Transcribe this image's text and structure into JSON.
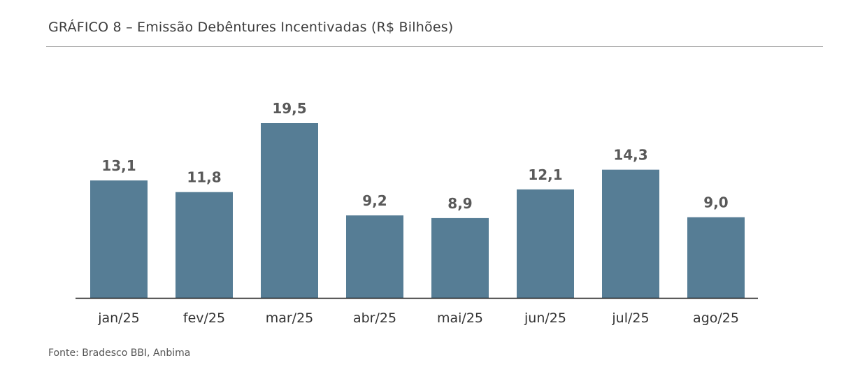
{
  "title": "GRÁFICO 8 – Emissão Debêntures Incentivadas (R$ Bilhões)",
  "source": "Fonte: Bradesco BBI, Anbima",
  "colors": {
    "bar": "#567d95",
    "axis": "#1a1a1a",
    "value_label": "#595959",
    "tick_label": "#333333"
  },
  "chart_data": {
    "type": "bar",
    "title": "GRÁFICO 8 – Emissão Debêntures Incentivadas (R$ Bilhões)",
    "xlabel": "",
    "ylabel": "",
    "categories": [
      "jan/25",
      "fev/25",
      "mar/25",
      "abr/25",
      "mai/25",
      "jun/25",
      "jul/25",
      "ago/25"
    ],
    "values": [
      13.1,
      11.8,
      19.5,
      9.2,
      8.9,
      12.1,
      14.3,
      9.0
    ],
    "value_labels": [
      "13,1",
      "11,8",
      "19,5",
      "9,2",
      "8,9",
      "12,1",
      "14,3",
      "9,0"
    ],
    "ylim": [
      0,
      19.5
    ],
    "grid": false,
    "legend": "none"
  }
}
